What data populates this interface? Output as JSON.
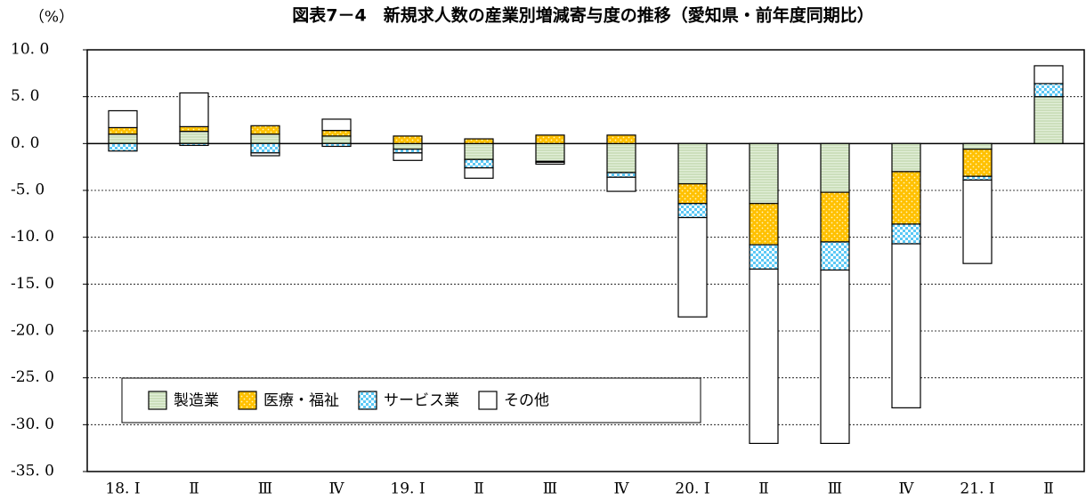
{
  "chart_data": {
    "type": "bar",
    "stacked": true,
    "title": "図表7－4　新規求人数の産業別増減寄与度の推移（愛知県・前年度同期比）",
    "y_label": "（%）",
    "categories": [
      "18. Ⅰ",
      "Ⅱ",
      "Ⅲ",
      "Ⅳ",
      "19. Ⅰ",
      "Ⅱ",
      "Ⅲ",
      "Ⅳ",
      "20. Ⅰ",
      "Ⅱ",
      "Ⅲ",
      "Ⅳ",
      "21. Ⅰ",
      "Ⅱ"
    ],
    "series": [
      {
        "name": "製造業",
        "color": "#e2efd9",
        "values": [
          1.0,
          1.3,
          1.0,
          0.8,
          -0.6,
          -1.7,
          -1.9,
          -3.1,
          -4.3,
          -6.4,
          -5.2,
          -3.0,
          -0.6,
          5.0
        ]
      },
      {
        "name": "医療・福祉",
        "color": "#ffc000",
        "values": [
          0.7,
          0.5,
          0.9,
          0.6,
          0.8,
          0.5,
          0.9,
          0.9,
          -2.1,
          -4.4,
          -5.3,
          -5.6,
          -2.9,
          0
        ]
      },
      {
        "name": "サービス業",
        "color": "#5bc8f5",
        "values": [
          -0.8,
          -0.2,
          -1.0,
          -0.3,
          -0.4,
          -0.9,
          -0.1,
          -0.5,
          -1.5,
          -2.6,
          -3.0,
          -2.1,
          -0.4,
          1.4
        ]
      },
      {
        "name": "その他",
        "color": "#ffffff",
        "values": [
          1.8,
          3.6,
          -0.3,
          1.2,
          -0.8,
          -1.1,
          -0.2,
          -1.5,
          -10.6,
          -18.6,
          -18.5,
          -17.5,
          -8.9,
          1.9
        ]
      }
    ],
    "ylim": [
      -35,
      10
    ],
    "yticks": [
      {
        "value": 10,
        "label": "10. 0"
      },
      {
        "value": 5,
        "label": "5. 0"
      },
      {
        "value": 0,
        "label": "0. 0"
      },
      {
        "value": -5,
        "label": "-5. 0"
      },
      {
        "value": -10,
        "label": "-10. 0"
      },
      {
        "value": -15,
        "label": "-15. 0"
      },
      {
        "value": -20,
        "label": "-20. 0"
      },
      {
        "value": -25,
        "label": "-25. 0"
      },
      {
        "value": -30,
        "label": "-30. 0"
      },
      {
        "value": -35,
        "label": "-35. 0"
      }
    ],
    "grid": true,
    "legend": "lower left"
  }
}
